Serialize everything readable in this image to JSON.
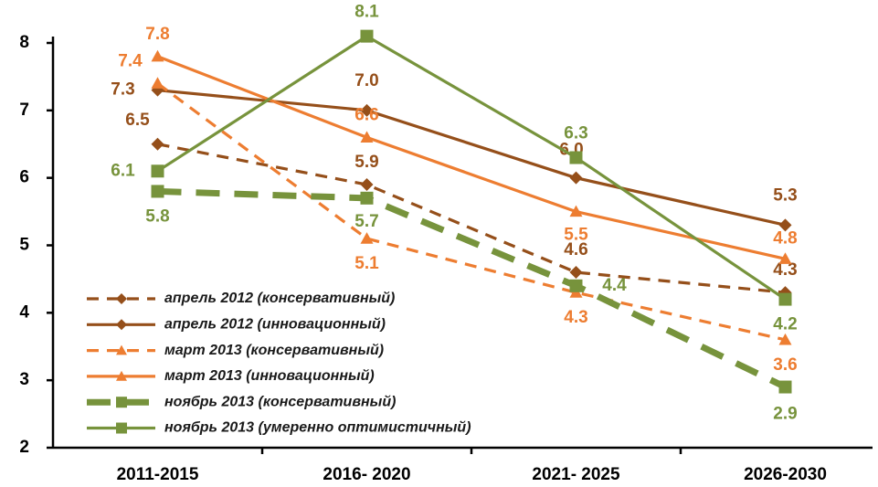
{
  "chart_data": {
    "type": "line",
    "categories": [
      "2011-2015",
      "2016- 2020",
      "2021- 2025",
      "2026-2030"
    ],
    "ylim": [
      2,
      8
    ],
    "yticks": [
      2,
      3,
      4,
      5,
      6,
      7,
      8
    ],
    "legend": "bottom-left",
    "series": [
      {
        "name": "апрель 2012 (консервативный)",
        "color": "#954F1A",
        "line_style": "dashed",
        "marker": "diamond",
        "values": [
          6.5,
          5.9,
          4.6,
          4.3
        ],
        "value_labels": [
          "6.5",
          "5.9",
          "4.6",
          "4.3"
        ]
      },
      {
        "name": "апрель 2012 (инновационный)",
        "color": "#954F1A",
        "line_style": "solid",
        "marker": "diamond",
        "values": [
          7.3,
          7.0,
          6.0,
          5.3
        ],
        "value_labels": [
          "7.3",
          "7.0",
          "6.0",
          "5.3"
        ]
      },
      {
        "name": "март 2013 (консервативный)",
        "color": "#ED7D31",
        "line_style": "dashed",
        "marker": "triangle",
        "values": [
          7.4,
          5.1,
          4.3,
          3.6
        ],
        "value_labels": [
          "7.4",
          "5.1",
          "4.3",
          "3.6"
        ]
      },
      {
        "name": "март 2013 (инновационный)",
        "color": "#ED7D31",
        "line_style": "solid",
        "marker": "triangle",
        "values": [
          7.8,
          6.6,
          5.5,
          4.8
        ],
        "value_labels": [
          "7.8",
          "6.6",
          "5.5",
          "4.8"
        ]
      },
      {
        "name": "ноябрь 2013 (консервативный)",
        "color": "#77933C",
        "line_style": "dashed",
        "marker": "square",
        "values": [
          5.8,
          5.7,
          4.4,
          2.9
        ],
        "value_labels": [
          "5.8",
          "5.7",
          "4.4",
          "2.9"
        ]
      },
      {
        "name": "ноябрь 2013 (умеренно оптимистичный)",
        "color": "#77933C",
        "line_style": "solid",
        "marker": "square",
        "values": [
          6.1,
          8.1,
          6.3,
          4.2
        ],
        "value_labels": [
          "6.1",
          "8.1",
          "6.3",
          "4.2"
        ]
      }
    ]
  }
}
